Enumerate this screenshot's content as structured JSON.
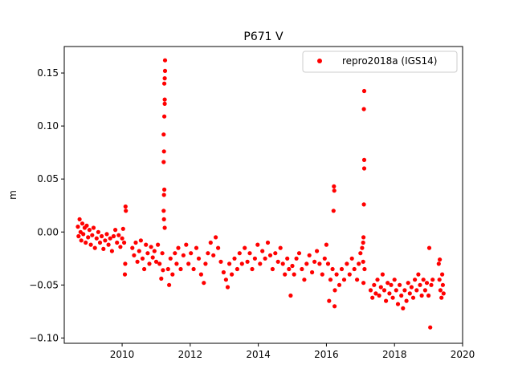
{
  "chart_data": {
    "type": "scatter",
    "title": "P671 V",
    "xlabel": "",
    "ylabel": "m",
    "xlim": [
      2008.3,
      2020.0
    ],
    "ylim": [
      -0.105,
      0.175
    ],
    "x_ticks": [
      "2010",
      "2012",
      "2014",
      "2016",
      "2018",
      "2020"
    ],
    "x_tick_values": [
      2010,
      2012,
      2014,
      2016,
      2018,
      2020
    ],
    "y_ticks": [
      "−0.10",
      "−0.05",
      "0.00",
      "0.05",
      "0.10",
      "0.15"
    ],
    "y_tick_values": [
      -0.1,
      -0.05,
      0.0,
      0.05,
      0.1,
      0.15
    ],
    "grid": false,
    "legend_position": "top-right",
    "marker_color": "#ff0000",
    "series": [
      {
        "name": "repro2018a (IGS14)",
        "color": "#ff0000",
        "points": [
          [
            2008.7,
            0.005
          ],
          [
            2008.72,
            -0.004
          ],
          [
            2008.75,
            0.012
          ],
          [
            2008.78,
            0.0
          ],
          [
            2008.8,
            -0.008
          ],
          [
            2008.83,
            0.008
          ],
          [
            2008.86,
            -0.002
          ],
          [
            2008.9,
            0.004
          ],
          [
            2008.93,
            -0.01
          ],
          [
            2008.96,
            0.006
          ],
          [
            2009.0,
            -0.005
          ],
          [
            2009.04,
            0.002
          ],
          [
            2009.08,
            -0.012
          ],
          [
            2009.12,
            -0.003
          ],
          [
            2009.16,
            0.004
          ],
          [
            2009.2,
            -0.015
          ],
          [
            2009.25,
            -0.006
          ],
          [
            2009.3,
            0.0
          ],
          [
            2009.35,
            -0.01
          ],
          [
            2009.4,
            -0.004
          ],
          [
            2009.45,
            -0.016
          ],
          [
            2009.5,
            -0.008
          ],
          [
            2009.55,
            -0.002
          ],
          [
            2009.6,
            -0.012
          ],
          [
            2009.65,
            -0.006
          ],
          [
            2009.7,
            -0.018
          ],
          [
            2009.75,
            -0.004
          ],
          [
            2009.8,
            0.002
          ],
          [
            2009.85,
            -0.01
          ],
          [
            2009.9,
            -0.003
          ],
          [
            2009.95,
            -0.014
          ],
          [
            2010.0,
            -0.006
          ],
          [
            2010.03,
            0.003
          ],
          [
            2010.06,
            -0.01
          ],
          [
            2010.08,
            -0.04
          ],
          [
            2010.1,
            0.024
          ],
          [
            2010.11,
            0.02
          ],
          [
            2010.09,
            -0.03
          ],
          [
            2010.3,
            -0.015
          ],
          [
            2010.35,
            -0.022
          ],
          [
            2010.4,
            -0.01
          ],
          [
            2010.45,
            -0.028
          ],
          [
            2010.5,
            -0.018
          ],
          [
            2010.55,
            -0.008
          ],
          [
            2010.6,
            -0.025
          ],
          [
            2010.65,
            -0.035
          ],
          [
            2010.7,
            -0.012
          ],
          [
            2010.75,
            -0.02
          ],
          [
            2010.8,
            -0.03
          ],
          [
            2010.85,
            -0.014
          ],
          [
            2010.9,
            -0.024
          ],
          [
            2010.95,
            -0.018
          ],
          [
            2011.0,
            -0.028
          ],
          [
            2011.05,
            -0.012
          ],
          [
            2011.1,
            -0.03
          ],
          [
            2011.15,
            -0.044
          ],
          [
            2011.18,
            -0.02
          ],
          [
            2011.2,
            -0.036
          ],
          [
            2011.22,
            0.02
          ],
          [
            2011.23,
            0.035
          ],
          [
            2011.24,
            0.04
          ],
          [
            2011.22,
            0.066
          ],
          [
            2011.23,
            0.076
          ],
          [
            2011.22,
            0.092
          ],
          [
            2011.24,
            0.109
          ],
          [
            2011.25,
            0.121
          ],
          [
            2011.25,
            0.125
          ],
          [
            2011.24,
            0.14
          ],
          [
            2011.25,
            0.145
          ],
          [
            2011.26,
            0.152
          ],
          [
            2011.26,
            0.162
          ],
          [
            2011.23,
            0.012
          ],
          [
            2011.25,
            0.004
          ],
          [
            2011.35,
            -0.035
          ],
          [
            2011.38,
            -0.05
          ],
          [
            2011.42,
            -0.025
          ],
          [
            2011.48,
            -0.04
          ],
          [
            2011.55,
            -0.02
          ],
          [
            2011.6,
            -0.03
          ],
          [
            2011.65,
            -0.015
          ],
          [
            2011.72,
            -0.035
          ],
          [
            2011.8,
            -0.022
          ],
          [
            2011.88,
            -0.012
          ],
          [
            2011.95,
            -0.03
          ],
          [
            2012.02,
            -0.02
          ],
          [
            2012.1,
            -0.035
          ],
          [
            2012.18,
            -0.015
          ],
          [
            2012.25,
            -0.025
          ],
          [
            2012.32,
            -0.04
          ],
          [
            2012.4,
            -0.048
          ],
          [
            2012.45,
            -0.03
          ],
          [
            2012.52,
            -0.02
          ],
          [
            2012.6,
            -0.01
          ],
          [
            2012.68,
            -0.022
          ],
          [
            2012.75,
            -0.005
          ],
          [
            2012.82,
            -0.015
          ],
          [
            2012.9,
            -0.028
          ],
          [
            2012.98,
            -0.038
          ],
          [
            2013.05,
            -0.045
          ],
          [
            2013.1,
            -0.052
          ],
          [
            2013.15,
            -0.03
          ],
          [
            2013.22,
            -0.04
          ],
          [
            2013.3,
            -0.025
          ],
          [
            2013.38,
            -0.035
          ],
          [
            2013.45,
            -0.02
          ],
          [
            2013.52,
            -0.03
          ],
          [
            2013.6,
            -0.015
          ],
          [
            2013.68,
            -0.028
          ],
          [
            2013.75,
            -0.02
          ],
          [
            2013.82,
            -0.035
          ],
          [
            2013.9,
            -0.025
          ],
          [
            2013.98,
            -0.012
          ],
          [
            2014.05,
            -0.03
          ],
          [
            2014.12,
            -0.018
          ],
          [
            2014.2,
            -0.025
          ],
          [
            2014.28,
            -0.01
          ],
          [
            2014.35,
            -0.022
          ],
          [
            2014.42,
            -0.035
          ],
          [
            2014.5,
            -0.02
          ],
          [
            2014.58,
            -0.028
          ],
          [
            2014.65,
            -0.015
          ],
          [
            2014.72,
            -0.03
          ],
          [
            2014.78,
            -0.04
          ],
          [
            2014.85,
            -0.025
          ],
          [
            2014.9,
            -0.035
          ],
          [
            2014.95,
            -0.06
          ],
          [
            2015.0,
            -0.032
          ],
          [
            2015.05,
            -0.04
          ],
          [
            2015.12,
            -0.025
          ],
          [
            2015.2,
            -0.02
          ],
          [
            2015.28,
            -0.035
          ],
          [
            2015.35,
            -0.045
          ],
          [
            2015.42,
            -0.03
          ],
          [
            2015.5,
            -0.022
          ],
          [
            2015.58,
            -0.038
          ],
          [
            2015.65,
            -0.028
          ],
          [
            2015.72,
            -0.018
          ],
          [
            2015.8,
            -0.03
          ],
          [
            2015.88,
            -0.04
          ],
          [
            2015.95,
            -0.025
          ],
          [
            2016.0,
            -0.012
          ],
          [
            2016.05,
            -0.03
          ],
          [
            2016.08,
            -0.065
          ],
          [
            2016.12,
            -0.045
          ],
          [
            2016.18,
            -0.035
          ],
          [
            2016.22,
            0.043
          ],
          [
            2016.23,
            0.039
          ],
          [
            2016.21,
            0.02
          ],
          [
            2016.24,
            -0.07
          ],
          [
            2016.25,
            -0.055
          ],
          [
            2016.3,
            -0.04
          ],
          [
            2016.38,
            -0.05
          ],
          [
            2016.45,
            -0.035
          ],
          [
            2016.52,
            -0.045
          ],
          [
            2016.6,
            -0.03
          ],
          [
            2016.68,
            -0.04
          ],
          [
            2016.75,
            -0.025
          ],
          [
            2016.82,
            -0.035
          ],
          [
            2016.9,
            -0.045
          ],
          [
            2016.95,
            -0.03
          ],
          [
            2017.0,
            -0.02
          ],
          [
            2017.05,
            -0.015
          ],
          [
            2017.08,
            -0.01
          ],
          [
            2017.08,
            -0.028
          ],
          [
            2017.09,
            -0.048
          ],
          [
            2017.1,
            0.026
          ],
          [
            2017.11,
            0.06
          ],
          [
            2017.11,
            0.068
          ],
          [
            2017.1,
            0.116
          ],
          [
            2017.11,
            0.133
          ],
          [
            2017.09,
            -0.005
          ],
          [
            2017.12,
            -0.035
          ],
          [
            2017.3,
            -0.055
          ],
          [
            2017.35,
            -0.062
          ],
          [
            2017.4,
            -0.05
          ],
          [
            2017.45,
            -0.058
          ],
          [
            2017.5,
            -0.045
          ],
          [
            2017.55,
            -0.06
          ],
          [
            2017.6,
            -0.052
          ],
          [
            2017.65,
            -0.04
          ],
          [
            2017.7,
            -0.055
          ],
          [
            2017.75,
            -0.065
          ],
          [
            2017.8,
            -0.048
          ],
          [
            2017.85,
            -0.058
          ],
          [
            2017.9,
            -0.05
          ],
          [
            2017.95,
            -0.062
          ],
          [
            2018.0,
            -0.045
          ],
          [
            2018.05,
            -0.055
          ],
          [
            2018.1,
            -0.068
          ],
          [
            2018.15,
            -0.05
          ],
          [
            2018.2,
            -0.06
          ],
          [
            2018.25,
            -0.072
          ],
          [
            2018.3,
            -0.055
          ],
          [
            2018.35,
            -0.065
          ],
          [
            2018.4,
            -0.048
          ],
          [
            2018.45,
            -0.058
          ],
          [
            2018.5,
            -0.052
          ],
          [
            2018.55,
            -0.062
          ],
          [
            2018.6,
            -0.045
          ],
          [
            2018.65,
            -0.055
          ],
          [
            2018.7,
            -0.04
          ],
          [
            2018.75,
            -0.05
          ],
          [
            2018.8,
            -0.06
          ],
          [
            2018.85,
            -0.045
          ],
          [
            2018.9,
            -0.055
          ],
          [
            2018.95,
            -0.048
          ],
          [
            2019.0,
            -0.06
          ],
          [
            2019.05,
            -0.09
          ],
          [
            2019.02,
            -0.015
          ],
          [
            2019.08,
            -0.05
          ],
          [
            2019.12,
            -0.045
          ],
          [
            2019.3,
            -0.03
          ],
          [
            2019.32,
            -0.045
          ],
          [
            2019.35,
            -0.055
          ],
          [
            2019.38,
            -0.062
          ],
          [
            2019.4,
            -0.04
          ],
          [
            2019.42,
            -0.05
          ],
          [
            2019.44,
            -0.058
          ],
          [
            2019.33,
            -0.026
          ]
        ]
      }
    ]
  }
}
